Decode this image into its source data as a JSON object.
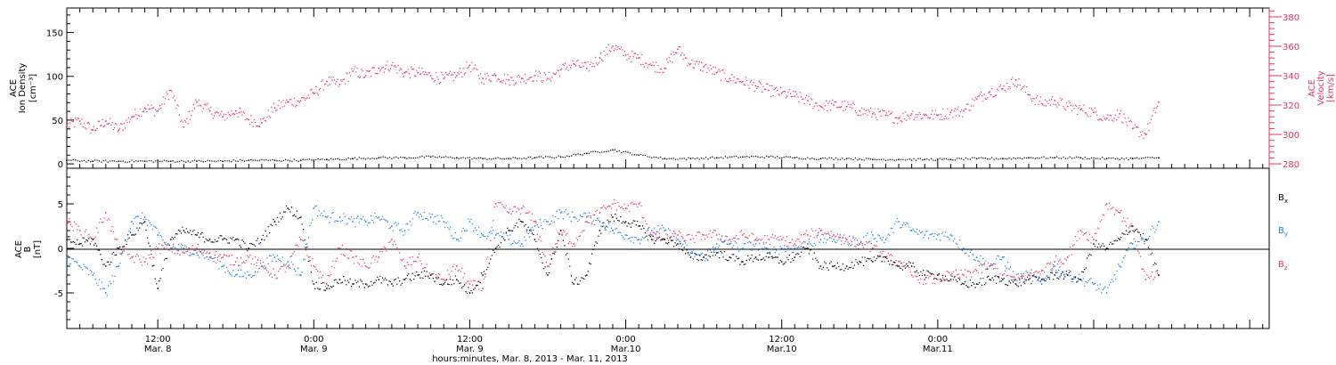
{
  "colors": {
    "black": "#000000",
    "pink": "#e8335f",
    "blue": "#1a7fe0"
  },
  "chart_data": [
    {
      "type": "scatter",
      "panel": "top",
      "ylabel_left": [
        "ACE",
        "Ion Density",
        "[cm⁻³]"
      ],
      "ylabel_right": [
        "ACE",
        "Velocity",
        "[km/s]"
      ],
      "ylim_left": [
        -5,
        178
      ],
      "ylim_right": [
        277,
        386
      ],
      "yticks_left": [
        "0",
        "50",
        "100",
        "150"
      ],
      "yticks_right": [
        "280",
        "300",
        "320",
        "340",
        "360",
        "380"
      ],
      "x_unit": "hours since Mar. 8, 2013 00:00",
      "xlim": [
        5,
        97.5
      ],
      "grid": false,
      "series": [
        {
          "name": "Ion Density",
          "axis": "left",
          "color": "#000000",
          "x": [
            5,
            7,
            9,
            11,
            13,
            15,
            17,
            19,
            21,
            23,
            25,
            27,
            29,
            31,
            33,
            35,
            37,
            39,
            41,
            43,
            45,
            47,
            49,
            51,
            53,
            55,
            57,
            59,
            61,
            63,
            65,
            67,
            69,
            71,
            73,
            75,
            77,
            79,
            81,
            83,
            85,
            87,
            89
          ],
          "y": [
            4,
            3,
            3,
            3,
            3,
            3,
            3,
            4,
            4,
            4,
            5,
            6,
            7,
            7,
            8,
            7,
            6,
            6,
            7,
            8,
            12,
            16,
            10,
            6,
            6,
            7,
            8,
            8,
            7,
            6,
            6,
            5,
            5,
            5,
            5,
            6,
            6,
            7,
            7,
            7,
            6,
            6,
            7
          ]
        },
        {
          "name": "Velocity",
          "axis": "right",
          "color": "#e8335f",
          "x": [
            5,
            6,
            7,
            8,
            9,
            10,
            11,
            12,
            13,
            14,
            15,
            16,
            17,
            18,
            19,
            20,
            21,
            22,
            23,
            24,
            25,
            26,
            27,
            28,
            29,
            30,
            31,
            32,
            33,
            34,
            35,
            36,
            37,
            38,
            39,
            40,
            41,
            42,
            43,
            44,
            45,
            46,
            47,
            48,
            49,
            50,
            51,
            52,
            53,
            54,
            55,
            56,
            57,
            58,
            59,
            60,
            61,
            62,
            63,
            64,
            65,
            66,
            67,
            68,
            69,
            70,
            71,
            72,
            73,
            74,
            75,
            76,
            77,
            78,
            79,
            80,
            81,
            82,
            83,
            84,
            85,
            86,
            87,
            88,
            89
          ],
          "y": [
            306,
            309,
            303,
            309,
            303,
            312,
            318,
            316,
            330,
            305,
            322,
            316,
            312,
            316,
            310,
            308,
            318,
            322,
            323,
            328,
            336,
            334,
            343,
            340,
            345,
            347,
            342,
            342,
            340,
            338,
            340,
            347,
            338,
            340,
            337,
            338,
            340,
            338,
            344,
            348,
            345,
            352,
            360,
            354,
            352,
            347,
            345,
            358,
            348,
            346,
            342,
            338,
            336,
            333,
            330,
            328,
            326,
            323,
            319,
            320,
            319,
            316,
            314,
            313,
            311,
            314,
            313,
            313,
            315,
            316,
            324,
            329,
            331,
            337,
            327,
            321,
            323,
            319,
            317,
            315,
            311,
            314,
            304,
            300,
            322
          ]
        }
      ]
    },
    {
      "type": "scatter",
      "panel": "bottom",
      "ylabel_left": [
        "ACE",
        "B",
        "[nT]"
      ],
      "ylim": [
        -9,
        9
      ],
      "yticks": [
        "-5",
        "0",
        "5"
      ],
      "zero_line": true,
      "x_unit": "hours since Mar. 8, 2013 00:00",
      "xlim": [
        5,
        97.5
      ],
      "grid": false,
      "legend": "right",
      "series": [
        {
          "name": "Bx",
          "legend_base": "B",
          "legend_sub": "x",
          "color": "#000000",
          "x": [
            5,
            6,
            7,
            8,
            9,
            10,
            11,
            12,
            13,
            14,
            15,
            16,
            17,
            18,
            19,
            20,
            21,
            22,
            23,
            24,
            25,
            26,
            27,
            28,
            29,
            30,
            31,
            32,
            33,
            34,
            35,
            36,
            37,
            38,
            39,
            40,
            41,
            42,
            43,
            44,
            45,
            46,
            47,
            48,
            49,
            50,
            51,
            52,
            53,
            54,
            55,
            56,
            57,
            58,
            59,
            60,
            61,
            62,
            63,
            64,
            65,
            66,
            67,
            68,
            69,
            70,
            71,
            72,
            73,
            74,
            75,
            76,
            77,
            78,
            79,
            80,
            81,
            82,
            83,
            84,
            85,
            86,
            87,
            88,
            89
          ],
          "y": [
            1,
            0.5,
            1,
            -2,
            0,
            1.5,
            3,
            -4.5,
            1,
            2,
            1.5,
            1,
            1,
            1,
            0,
            1,
            3,
            4.5,
            3.5,
            -4,
            -4.5,
            -3.5,
            -4,
            -4,
            -3.5,
            -4,
            -3.5,
            -3,
            -3,
            -4,
            -3.5,
            -5,
            -3,
            0,
            2,
            3,
            1,
            -3,
            2,
            -4,
            -3,
            2,
            3.5,
            3,
            2.5,
            1,
            1,
            0.5,
            -1,
            -1,
            -0.5,
            -1,
            -1.5,
            -1,
            -1,
            -1.5,
            -1,
            0,
            -2,
            -2,
            -2,
            -1.5,
            -1.5,
            -1,
            -2,
            -2,
            -3,
            -3,
            -3.5,
            -4,
            -4,
            -3.5,
            -3.5,
            -4,
            -3.5,
            -3.5,
            -3,
            -3,
            -3.5,
            0.5,
            0,
            1,
            2.5,
            1,
            -3
          ]
        },
        {
          "name": "By",
          "legend_base": "B",
          "legend_sub": "y",
          "color": "#1a7fe0",
          "x": [
            5,
            6,
            7,
            8,
            9,
            10,
            11,
            12,
            13,
            14,
            15,
            16,
            17,
            18,
            19,
            20,
            21,
            22,
            23,
            24,
            25,
            26,
            27,
            28,
            29,
            30,
            31,
            32,
            33,
            34,
            35,
            36,
            37,
            38,
            39,
            40,
            41,
            42,
            43,
            44,
            45,
            46,
            47,
            48,
            49,
            50,
            51,
            52,
            53,
            54,
            55,
            56,
            57,
            58,
            59,
            60,
            61,
            62,
            63,
            64,
            65,
            66,
            67,
            68,
            69,
            70,
            71,
            72,
            73,
            74,
            75,
            76,
            77,
            78,
            79,
            80,
            81,
            82,
            83,
            84,
            85,
            86,
            87,
            88,
            89
          ],
          "y": [
            -1,
            -2,
            -3,
            -5,
            -2,
            3,
            3.5,
            1.5,
            0,
            0,
            -0.5,
            -1,
            -2,
            -3,
            -3,
            -2,
            -1,
            -1.5,
            -3,
            4.5,
            3.5,
            3.5,
            3,
            3,
            3.5,
            2.5,
            2,
            4,
            3.5,
            3,
            1,
            3,
            1.5,
            1.5,
            1,
            0.5,
            2.5,
            3,
            4,
            3.5,
            3.5,
            3,
            2,
            1.5,
            1,
            2,
            2,
            1,
            -0.5,
            -1,
            0.5,
            0.5,
            0,
            0.5,
            -0.5,
            0,
            0,
            0.5,
            1,
            1,
            1,
            0.5,
            1.5,
            1,
            3,
            2,
            1.5,
            1.5,
            1.5,
            0,
            -1,
            -2,
            -1,
            -3.5,
            -3,
            -4,
            -2,
            -3,
            -3.5,
            -4,
            -5,
            -2,
            0.5,
            1,
            3
          ]
        },
        {
          "name": "Bz",
          "legend_base": "B",
          "legend_sub": "z",
          "color": "#e8335f",
          "x": [
            5,
            6,
            7,
            8,
            9,
            10,
            11,
            12,
            13,
            14,
            15,
            16,
            17,
            18,
            19,
            20,
            21,
            22,
            23,
            24,
            25,
            26,
            27,
            28,
            29,
            30,
            31,
            32,
            33,
            34,
            35,
            36,
            37,
            38,
            39,
            40,
            41,
            42,
            43,
            44,
            45,
            46,
            47,
            48,
            49,
            50,
            51,
            52,
            53,
            54,
            55,
            56,
            57,
            58,
            59,
            60,
            61,
            62,
            63,
            64,
            65,
            66,
            67,
            68,
            69,
            70,
            71,
            72,
            73,
            74,
            75,
            76,
            77,
            78,
            79,
            80,
            81,
            82,
            83,
            84,
            85,
            86,
            87,
            88,
            89
          ],
          "y": [
            3,
            2,
            1,
            4,
            0,
            -1,
            -1.5,
            0,
            0,
            -0.5,
            0,
            -0.5,
            -1,
            -1.5,
            -1,
            -2,
            -3,
            -2,
            1,
            -2,
            -4,
            0,
            -1,
            -2,
            -1,
            1,
            -2,
            -1,
            -3,
            -3.5,
            -2,
            -4,
            -4.5,
            5,
            4,
            4.5,
            3,
            -2,
            2,
            0.5,
            3,
            4,
            5,
            4.5,
            5,
            1.5,
            1,
            1.5,
            1,
            1.5,
            1.5,
            1,
            1.5,
            1,
            1,
            1,
            0.5,
            1.5,
            2,
            1.5,
            1,
            0.5,
            0,
            -1,
            -1.5,
            -3,
            -3.5,
            -3.5,
            -3,
            -3,
            -2.5,
            -2,
            -3,
            -3.5,
            -3,
            -2.5,
            -1.5,
            -1,
            2,
            1,
            5,
            4,
            2,
            -3.5,
            -3
          ]
        }
      ]
    }
  ],
  "x_axis": {
    "ticks": [
      {
        "hours": 12,
        "line1": "12:00",
        "line2": "Mar. 8"
      },
      {
        "hours": 24,
        "line1": "0:00",
        "line2": "Mar. 9"
      },
      {
        "hours": 36,
        "line1": "12:00",
        "line2": "Mar. 9"
      },
      {
        "hours": 48,
        "line1": "0:00",
        "line2": "Mar.10"
      },
      {
        "hours": 60,
        "line1": "12:00",
        "line2": "Mar.10"
      },
      {
        "hours": 72,
        "line1": "0:00",
        "line2": "Mar.11"
      }
    ],
    "title": "hours:minutes, Mar.  8, 2013 - Mar. 11, 2013"
  }
}
